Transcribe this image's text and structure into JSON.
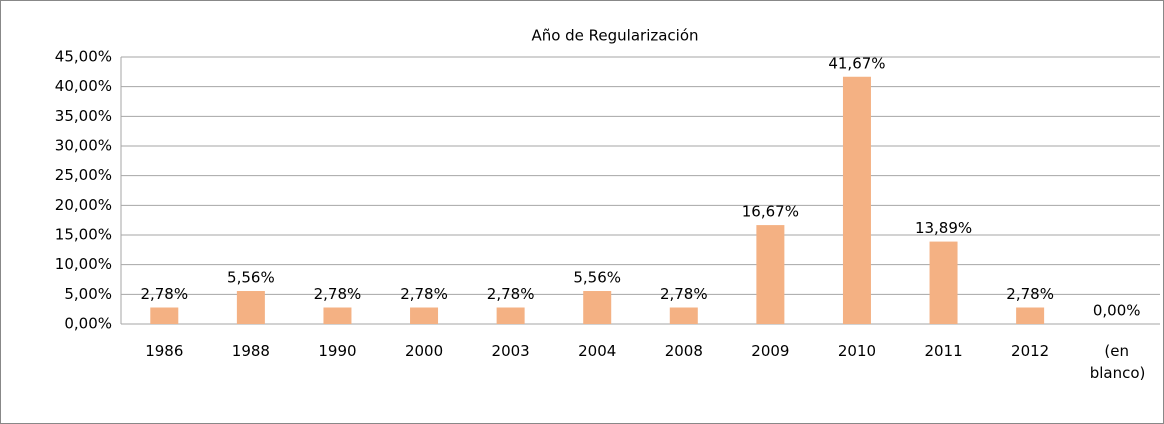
{
  "chart_data": {
    "type": "bar",
    "title": "Año de Regularización",
    "categories": [
      "1986",
      "1988",
      "1990",
      "2000",
      "2003",
      "2004",
      "2008",
      "2009",
      "2010",
      "2011",
      "2012",
      "(en blanco)"
    ],
    "values": [
      2.78,
      5.56,
      2.78,
      2.78,
      2.78,
      5.56,
      2.78,
      16.67,
      41.67,
      13.89,
      2.78,
      0
    ],
    "value_labels": [
      "2,78%",
      "5,56%",
      "2,78%",
      "2,78%",
      "2,78%",
      "5,56%",
      "2,78%",
      "16,67%",
      "41,67%",
      "13,89%",
      "2,78%",
      "0,00%"
    ],
    "color": "#f4b183",
    "ylim": [
      0,
      45
    ],
    "yticks": [
      {
        "value": 0,
        "label": "0,00%"
      },
      {
        "value": 5,
        "label": "5,00%"
      },
      {
        "value": 10,
        "label": "10,00%"
      },
      {
        "value": 15,
        "label": "15,00%"
      },
      {
        "value": 20,
        "label": "20,00%"
      },
      {
        "value": 25,
        "label": "25,00%"
      },
      {
        "value": 30,
        "label": "30,00%"
      },
      {
        "value": 35,
        "label": "35,00%"
      },
      {
        "value": 40,
        "label": "40,00%"
      },
      {
        "value": 45,
        "label": "45,00%"
      }
    ],
    "grid": true
  }
}
